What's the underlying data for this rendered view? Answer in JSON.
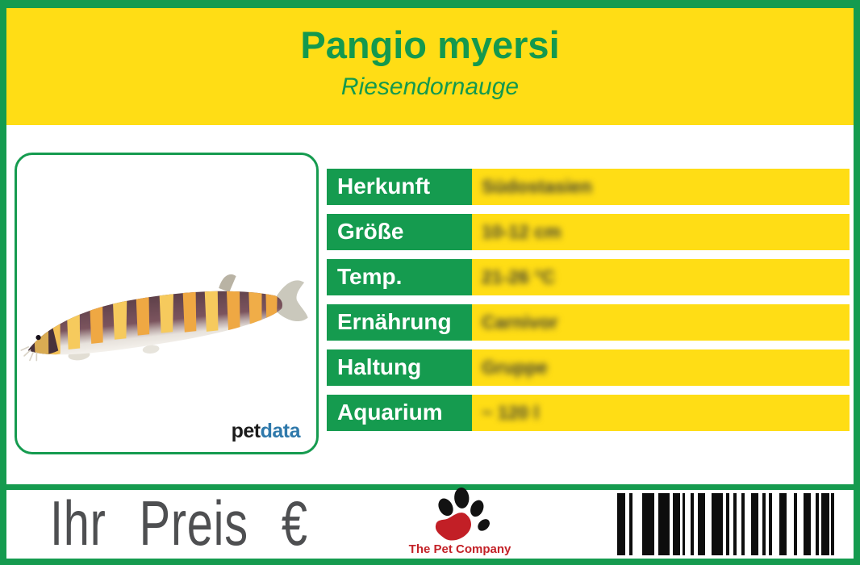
{
  "colors": {
    "green": "#159b4f",
    "yellow": "#ffdd15",
    "green_text": "#14994e",
    "price_gray": "#4e4f51",
    "company_red": "#c32127",
    "petdata_blue": "#2f79ab",
    "petdata_black": "#1b1b1b",
    "value_text": "#3f4036"
  },
  "header": {
    "title": "Pangio myersi",
    "subtitle": "Riesendornauge"
  },
  "photo": {
    "brand_pet": "pet",
    "brand_data": "data"
  },
  "info_table": {
    "rows": [
      {
        "label": "Herkunft",
        "value": "Südostasien"
      },
      {
        "label": "Größe",
        "value": "10-12 cm"
      },
      {
        "label": "Temp.",
        "value": "21-26 °C"
      },
      {
        "label": "Ernährung",
        "value": "Carnivor"
      },
      {
        "label": "Haltung",
        "value": "Gruppe"
      },
      {
        "label": "Aquarium",
        "value": "~ 120 l"
      }
    ]
  },
  "footer": {
    "price_label": "Ihr Preis €",
    "company_name": "The Pet Company",
    "barcode_bars": [
      [
        10,
        5
      ],
      [
        4,
        12
      ],
      [
        15,
        5
      ],
      [
        14,
        4
      ],
      [
        9,
        3
      ],
      [
        3,
        7
      ],
      [
        4,
        5
      ],
      [
        9,
        8
      ],
      [
        14,
        4
      ],
      [
        4,
        5
      ],
      [
        4,
        6
      ],
      [
        4,
        8
      ],
      [
        9,
        5
      ],
      [
        4,
        4
      ],
      [
        4,
        9
      ],
      [
        9,
        9
      ],
      [
        4,
        8
      ],
      [
        9,
        6
      ],
      [
        4,
        3
      ],
      [
        10,
        2
      ],
      [
        4,
        0
      ]
    ]
  }
}
